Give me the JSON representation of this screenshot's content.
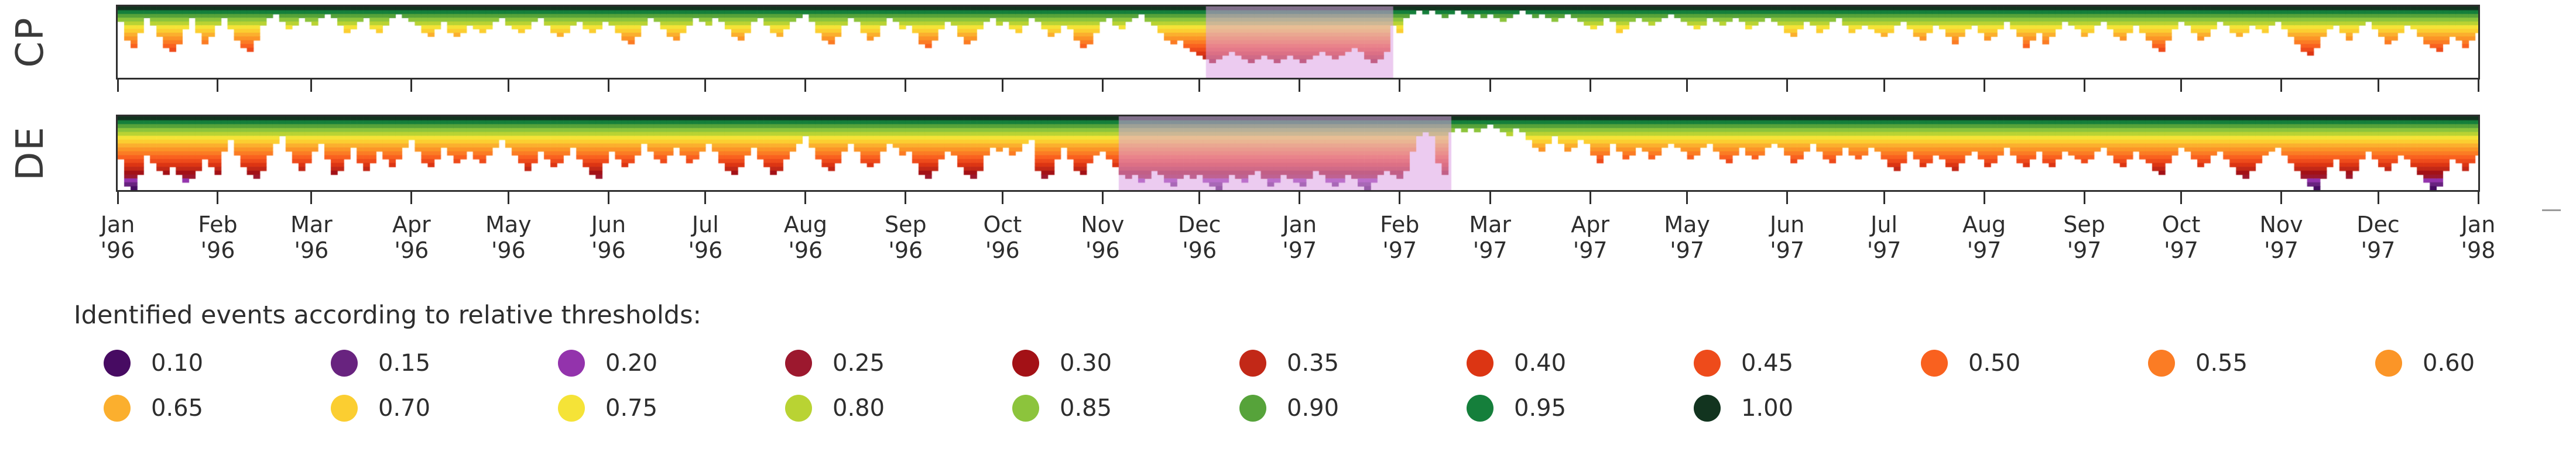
{
  "strips": [
    {
      "label": "CP"
    },
    {
      "label": "DE"
    }
  ],
  "legend": {
    "title": "Identified events according to relative thresholds:",
    "items": [
      {
        "value": "0.10",
        "color": "#470b62"
      },
      {
        "value": "0.15",
        "color": "#68237f"
      },
      {
        "value": "0.20",
        "color": "#9333ac"
      },
      {
        "value": "0.25",
        "color": "#9c182e"
      },
      {
        "value": "0.30",
        "color": "#a31116"
      },
      {
        "value": "0.35",
        "color": "#c22817"
      },
      {
        "value": "0.40",
        "color": "#dc3513"
      },
      {
        "value": "0.45",
        "color": "#ee4b1b"
      },
      {
        "value": "0.50",
        "color": "#f9611f"
      },
      {
        "value": "0.55",
        "color": "#fb7c24"
      },
      {
        "value": "0.60",
        "color": "#fb9527"
      },
      {
        "value": "0.65",
        "color": "#fbaf2e"
      },
      {
        "value": "0.70",
        "color": "#fbce31"
      },
      {
        "value": "0.75",
        "color": "#f5e337"
      },
      {
        "value": "0.80",
        "color": "#b9d333"
      },
      {
        "value": "0.85",
        "color": "#8cc43c"
      },
      {
        "value": "0.90",
        "color": "#56a33a"
      },
      {
        "value": "0.95",
        "color": "#157f3b"
      },
      {
        "value": "1.00",
        "color": "#12341f"
      }
    ]
  },
  "chart_data": {
    "type": "heatmap",
    "title": "Identified events according to relative thresholds",
    "x_start": "Jan 1996",
    "x_end": "Jan 1998",
    "total_days": 731,
    "bin_days": 2,
    "thresholds": [
      0.1,
      0.15,
      0.2,
      0.25,
      0.3,
      0.35,
      0.4,
      0.45,
      0.5,
      0.55,
      0.6,
      0.65,
      0.7,
      0.75,
      0.8,
      0.85,
      0.9,
      0.95,
      1.0
    ],
    "highlight_color": "#dda0e3",
    "highlights": [
      {
        "series": "CP",
        "start_day": 337,
        "end_day": 395
      },
      {
        "series": "DE",
        "start_day": 310,
        "end_day": 413
      }
    ],
    "x_ticks": [
      {
        "month": "Jan",
        "year": "'96",
        "day": 0
      },
      {
        "month": "Feb",
        "year": "'96",
        "day": 31
      },
      {
        "month": "Mar",
        "year": "'96",
        "day": 60
      },
      {
        "month": "Apr",
        "year": "'96",
        "day": 91
      },
      {
        "month": "May",
        "year": "'96",
        "day": 121
      },
      {
        "month": "Jun",
        "year": "'96",
        "day": 152
      },
      {
        "month": "Jul",
        "year": "'96",
        "day": 182
      },
      {
        "month": "Aug",
        "year": "'96",
        "day": 213
      },
      {
        "month": "Sep",
        "year": "'96",
        "day": 244
      },
      {
        "month": "Oct",
        "year": "'96",
        "day": 274
      },
      {
        "month": "Nov",
        "year": "'96",
        "day": 305
      },
      {
        "month": "Dec",
        "year": "'96",
        "day": 335
      },
      {
        "month": "Jan",
        "year": "'97",
        "day": 366
      },
      {
        "month": "Feb",
        "year": "'97",
        "day": 397
      },
      {
        "month": "Mar",
        "year": "'97",
        "day": 425
      },
      {
        "month": "Apr",
        "year": "'97",
        "day": 456
      },
      {
        "month": "May",
        "year": "'97",
        "day": 486
      },
      {
        "month": "Jun",
        "year": "'97",
        "day": 517
      },
      {
        "month": "Jul",
        "year": "'97",
        "day": 547
      },
      {
        "month": "Aug",
        "year": "'97",
        "day": 578
      },
      {
        "month": "Sep",
        "year": "'97",
        "day": 609
      },
      {
        "month": "Oct",
        "year": "'97",
        "day": 639
      },
      {
        "month": "Nov",
        "year": "'97",
        "day": 670
      },
      {
        "month": "Dec",
        "year": "'97",
        "day": 700
      },
      {
        "month": "Jan",
        "year": "'98",
        "day": 731
      }
    ],
    "series": [
      {
        "name": "CP",
        "min_threshold_per_bin": [
          0.85,
          0.6,
          0.5,
          0.7,
          0.9,
          0.8,
          0.65,
          0.5,
          0.45,
          0.55,
          0.75,
          0.9,
          0.7,
          0.55,
          0.65,
          0.8,
          0.9,
          0.75,
          0.6,
          0.5,
          0.45,
          0.6,
          0.8,
          0.9,
          0.95,
          0.85,
          0.75,
          0.8,
          0.9,
          0.85,
          0.8,
          0.9,
          0.95,
          0.9,
          0.8,
          0.7,
          0.75,
          0.85,
          0.9,
          0.75,
          0.7,
          0.8,
          0.9,
          0.95,
          0.9,
          0.85,
          0.8,
          0.7,
          0.65,
          0.75,
          0.85,
          0.7,
          0.65,
          0.7,
          0.8,
          0.75,
          0.7,
          0.75,
          0.85,
          0.9,
          0.8,
          0.75,
          0.7,
          0.75,
          0.85,
          0.9,
          0.8,
          0.7,
          0.65,
          0.7,
          0.8,
          0.85,
          0.75,
          0.7,
          0.75,
          0.85,
          0.8,
          0.7,
          0.6,
          0.55,
          0.65,
          0.8,
          0.9,
          0.85,
          0.75,
          0.65,
          0.6,
          0.7,
          0.8,
          0.9,
          0.85,
          0.8,
          0.9,
          0.85,
          0.75,
          0.65,
          0.6,
          0.7,
          0.85,
          0.9,
          0.8,
          0.7,
          0.65,
          0.75,
          0.85,
          0.9,
          0.95,
          0.85,
          0.7,
          0.6,
          0.55,
          0.65,
          0.8,
          0.9,
          0.85,
          0.7,
          0.6,
          0.65,
          0.8,
          0.9,
          0.85,
          0.75,
          0.8,
          0.7,
          0.55,
          0.5,
          0.6,
          0.75,
          0.85,
          0.8,
          0.65,
          0.55,
          0.6,
          0.75,
          0.85,
          0.9,
          0.8,
          0.85,
          0.75,
          0.7,
          0.8,
          0.9,
          0.85,
          0.75,
          0.65,
          0.7,
          0.8,
          0.75,
          0.6,
          0.5,
          0.55,
          0.7,
          0.85,
          0.9,
          0.8,
          0.75,
          0.85,
          0.9,
          0.95,
          0.85,
          0.8,
          0.7,
          0.6,
          0.55,
          0.6,
          0.5,
          0.45,
          0.4,
          0.35,
          0.3,
          0.35,
          0.4,
          0.45,
          0.4,
          0.35,
          0.3,
          0.35,
          0.4,
          0.35,
          0.3,
          0.35,
          0.4,
          0.35,
          0.3,
          0.35,
          0.4,
          0.45,
          0.4,
          0.35,
          0.4,
          0.45,
          0.5,
          0.45,
          0.35,
          0.3,
          0.35,
          0.45,
          0.8,
          0.7,
          0.9,
          0.95,
          1,
          0.95,
          1,
          0.95,
          0.9,
          0.95,
          1,
          0.95,
          0.9,
          0.95,
          0.9,
          0.95,
          0.9,
          0.85,
          0.9,
          0.95,
          1,
          0.95,
          0.9,
          0.95,
          0.9,
          0.85,
          0.9,
          0.95,
          0.9,
          0.85,
          0.8,
          0.75,
          0.8,
          0.9,
          0.85,
          0.7,
          0.75,
          0.85,
          0.9,
          0.85,
          0.8,
          0.85,
          0.9,
          0.95,
          0.9,
          0.85,
          0.8,
          0.75,
          0.8,
          0.9,
          0.85,
          0.8,
          0.85,
          0.9,
          0.85,
          0.75,
          0.8,
          0.85,
          0.9,
          0.85,
          0.8,
          0.7,
          0.65,
          0.75,
          0.85,
          0.8,
          0.7,
          0.75,
          0.85,
          0.9,
          0.8,
          0.7,
          0.75,
          0.8,
          0.75,
          0.7,
          0.65,
          0.7,
          0.8,
          0.85,
          0.75,
          0.65,
          0.6,
          0.7,
          0.8,
          0.75,
          0.65,
          0.55,
          0.65,
          0.75,
          0.8,
          0.7,
          0.6,
          0.65,
          0.75,
          0.85,
          0.75,
          0.65,
          0.5,
          0.6,
          0.7,
          0.55,
          0.65,
          0.75,
          0.85,
          0.8,
          0.75,
          0.65,
          0.7,
          0.8,
          0.85,
          0.75,
          0.65,
          0.6,
          0.7,
          0.8,
          0.7,
          0.6,
          0.5,
          0.45,
          0.6,
          0.75,
          0.85,
          0.8,
          0.7,
          0.6,
          0.65,
          0.75,
          0.85,
          0.8,
          0.7,
          0.65,
          0.7,
          0.8,
          0.75,
          0.7,
          0.8,
          0.85,
          0.75,
          0.65,
          0.55,
          0.45,
          0.4,
          0.5,
          0.65,
          0.75,
          0.8,
          0.7,
          0.6,
          0.7,
          0.8,
          0.85,
          0.75,
          0.65,
          0.55,
          0.6,
          0.7,
          0.8,
          0.75,
          0.65,
          0.55,
          0.5,
          0.45,
          0.55,
          0.65,
          0.6,
          0.5,
          0.6,
          0.7
        ]
      },
      {
        "name": "DE",
        "min_threshold_per_bin": [
          0.5,
          0.15,
          0.1,
          0.3,
          0.55,
          0.45,
          0.35,
          0.3,
          0.4,
          0.3,
          0.2,
          0.25,
          0.35,
          0.5,
          0.4,
          0.3,
          0.6,
          0.75,
          0.55,
          0.4,
          0.3,
          0.25,
          0.35,
          0.55,
          0.7,
          0.8,
          0.6,
          0.45,
          0.35,
          0.45,
          0.6,
          0.7,
          0.5,
          0.3,
          0.35,
          0.5,
          0.65,
          0.45,
          0.35,
          0.45,
          0.6,
          0.5,
          0.4,
          0.5,
          0.65,
          0.75,
          0.6,
          0.45,
          0.4,
          0.5,
          0.65,
          0.55,
          0.45,
          0.5,
          0.6,
          0.5,
          0.45,
          0.55,
          0.65,
          0.75,
          0.65,
          0.55,
          0.45,
          0.35,
          0.45,
          0.6,
          0.5,
          0.4,
          0.45,
          0.55,
          0.65,
          0.5,
          0.4,
          0.3,
          0.25,
          0.45,
          0.6,
          0.5,
          0.4,
          0.45,
          0.55,
          0.7,
          0.6,
          0.5,
          0.45,
          0.55,
          0.65,
          0.55,
          0.45,
          0.5,
          0.6,
          0.7,
          0.6,
          0.45,
          0.35,
          0.3,
          0.4,
          0.55,
          0.65,
          0.5,
          0.4,
          0.3,
          0.35,
          0.5,
          0.6,
          0.7,
          0.8,
          0.65,
          0.5,
          0.4,
          0.35,
          0.45,
          0.6,
          0.7,
          0.6,
          0.45,
          0.4,
          0.45,
          0.6,
          0.7,
          0.65,
          0.55,
          0.6,
          0.45,
          0.3,
          0.25,
          0.35,
          0.5,
          0.6,
          0.55,
          0.4,
          0.3,
          0.25,
          0.35,
          0.55,
          0.65,
          0.6,
          0.65,
          0.55,
          0.6,
          0.7,
          0.75,
          0.35,
          0.25,
          0.3,
          0.5,
          0.65,
          0.5,
          0.35,
          0.3,
          0.45,
          0.55,
          0.6,
          0.5,
          0.4,
          0.3,
          0.25,
          0.3,
          0.2,
          0.25,
          0.35,
          0.3,
          0.2,
          0.15,
          0.25,
          0.3,
          0.25,
          0.3,
          0.2,
          0.15,
          0.1,
          0.2,
          0.3,
          0.25,
          0.2,
          0.3,
          0.35,
          0.25,
          0.15,
          0.2,
          0.3,
          0.25,
          0.2,
          0.15,
          0.25,
          0.35,
          0.3,
          0.2,
          0.15,
          0.2,
          0.3,
          0.25,
          0.15,
          0.1,
          0.2,
          0.3,
          0.35,
          0.3,
          0.25,
          0.35,
          0.6,
          0.8,
          0.85,
          0.8,
          0.45,
          0.3,
          0.85,
          0.9,
          0.85,
          0.9,
          0.85,
          0.9,
          0.95,
          0.9,
          0.85,
          0.8,
          0.9,
          0.85,
          0.75,
          0.65,
          0.6,
          0.7,
          0.8,
          0.7,
          0.6,
          0.65,
          0.75,
          0.7,
          0.55,
          0.45,
          0.55,
          0.7,
          0.6,
          0.5,
          0.55,
          0.65,
          0.6,
          0.5,
          0.55,
          0.65,
          0.7,
          0.65,
          0.6,
          0.5,
          0.55,
          0.65,
          0.7,
          0.6,
          0.5,
          0.45,
          0.55,
          0.65,
          0.55,
          0.5,
          0.55,
          0.65,
          0.7,
          0.65,
          0.55,
          0.45,
          0.5,
          0.6,
          0.7,
          0.6,
          0.5,
          0.45,
          0.55,
          0.65,
          0.55,
          0.5,
          0.55,
          0.65,
          0.6,
          0.5,
          0.4,
          0.35,
          0.45,
          0.6,
          0.5,
          0.4,
          0.45,
          0.55,
          0.5,
          0.4,
          0.35,
          0.45,
          0.55,
          0.6,
          0.5,
          0.4,
          0.45,
          0.55,
          0.65,
          0.55,
          0.45,
          0.4,
          0.5,
          0.6,
          0.45,
          0.4,
          0.5,
          0.6,
          0.55,
          0.5,
          0.45,
          0.5,
          0.6,
          0.65,
          0.55,
          0.45,
          0.4,
          0.5,
          0.6,
          0.5,
          0.45,
          0.35,
          0.3,
          0.45,
          0.55,
          0.65,
          0.6,
          0.5,
          0.4,
          0.45,
          0.55,
          0.6,
          0.5,
          0.4,
          0.3,
          0.25,
          0.35,
          0.45,
          0.55,
          0.6,
          0.65,
          0.55,
          0.45,
          0.35,
          0.25,
          0.15,
          0.1,
          0.25,
          0.4,
          0.5,
          0.35,
          0.25,
          0.35,
          0.5,
          0.6,
          0.5,
          0.4,
          0.35,
          0.45,
          0.55,
          0.5,
          0.4,
          0.3,
          0.2,
          0.1,
          0.15,
          0.35,
          0.5,
          0.45,
          0.35,
          0.45,
          0.55
        ]
      }
    ]
  }
}
